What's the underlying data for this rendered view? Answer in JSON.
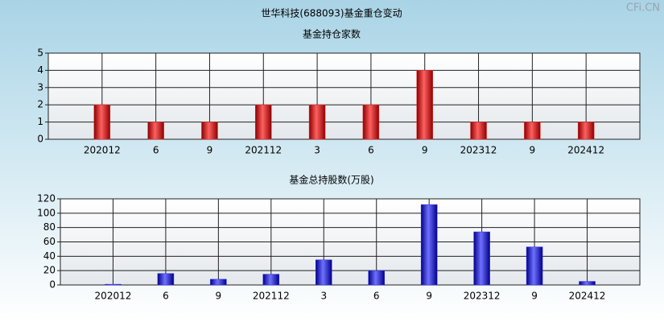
{
  "watermark": "CFi.CN",
  "chart_data": [
    {
      "type": "bar",
      "title": "世华科技(688093)基金重仓变动",
      "subtitle": "基金持仓家数",
      "categories": [
        "202012",
        "6",
        "9",
        "202112",
        "3",
        "6",
        "9",
        "202312",
        "9",
        "202412"
      ],
      "values": [
        2,
        1,
        1,
        2,
        2,
        2,
        4,
        1,
        1,
        1
      ],
      "color": "#e03030",
      "ylim": [
        0,
        5
      ],
      "yticks": [
        0,
        1,
        2,
        3,
        4,
        5
      ],
      "grid": true
    },
    {
      "type": "bar",
      "title": "基金总持股数(万股)",
      "categories": [
        "202012",
        "6",
        "9",
        "202112",
        "3",
        "6",
        "9",
        "202312",
        "9",
        "202412"
      ],
      "values": [
        1,
        16,
        8,
        15,
        35,
        20,
        112,
        74,
        53,
        5
      ],
      "color": "#3030e0",
      "ylim": [
        0,
        120
      ],
      "yticks": [
        0,
        20,
        40,
        60,
        80,
        100,
        120
      ],
      "grid": true
    }
  ]
}
